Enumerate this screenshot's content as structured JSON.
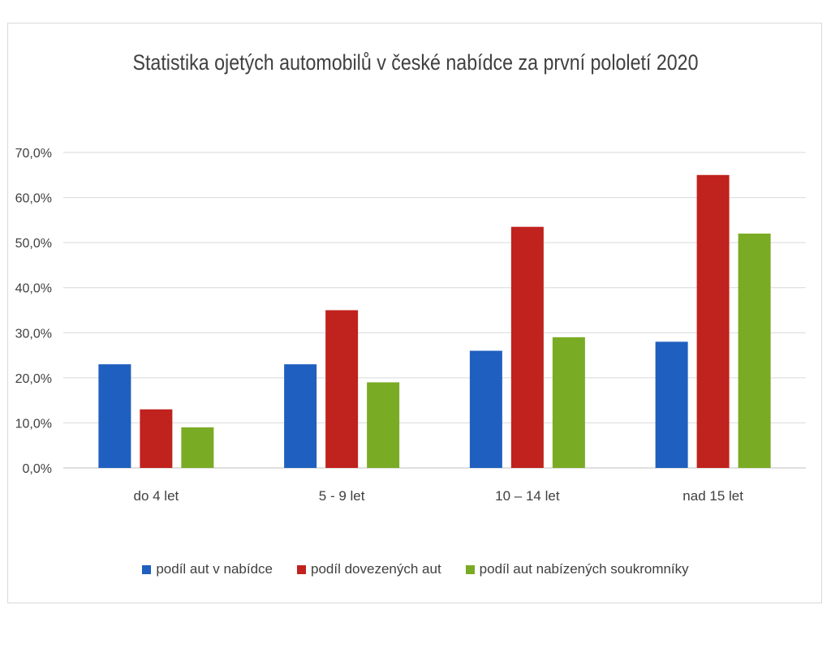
{
  "chart_data": {
    "type": "bar",
    "title": "Statistika ojetých automobilů v české nabídce za první pololetí 2020",
    "xlabel": "",
    "ylabel": "",
    "ylim": [
      0,
      70
    ],
    "yticks": [
      "0,0%",
      "10,0%",
      "20,0%",
      "30,0%",
      "40,0%",
      "50,0%",
      "60,0%",
      "70,0%"
    ],
    "categories": [
      "do 4 let",
      "5 - 9 let",
      "10 – 14 let",
      "nad 15 let"
    ],
    "series": [
      {
        "name": "podíl aut v nabídce",
        "color": "#1f5fbf",
        "values": [
          23,
          23,
          26,
          28
        ]
      },
      {
        "name": "podíl dovezených aut",
        "color": "#c0221e",
        "values": [
          13,
          35,
          53.5,
          65
        ]
      },
      {
        "name": "podíl aut nabízených soukromníky",
        "color": "#7aab24",
        "values": [
          9,
          19,
          29,
          52
        ]
      }
    ],
    "grid": true,
    "legend_position": "bottom"
  }
}
